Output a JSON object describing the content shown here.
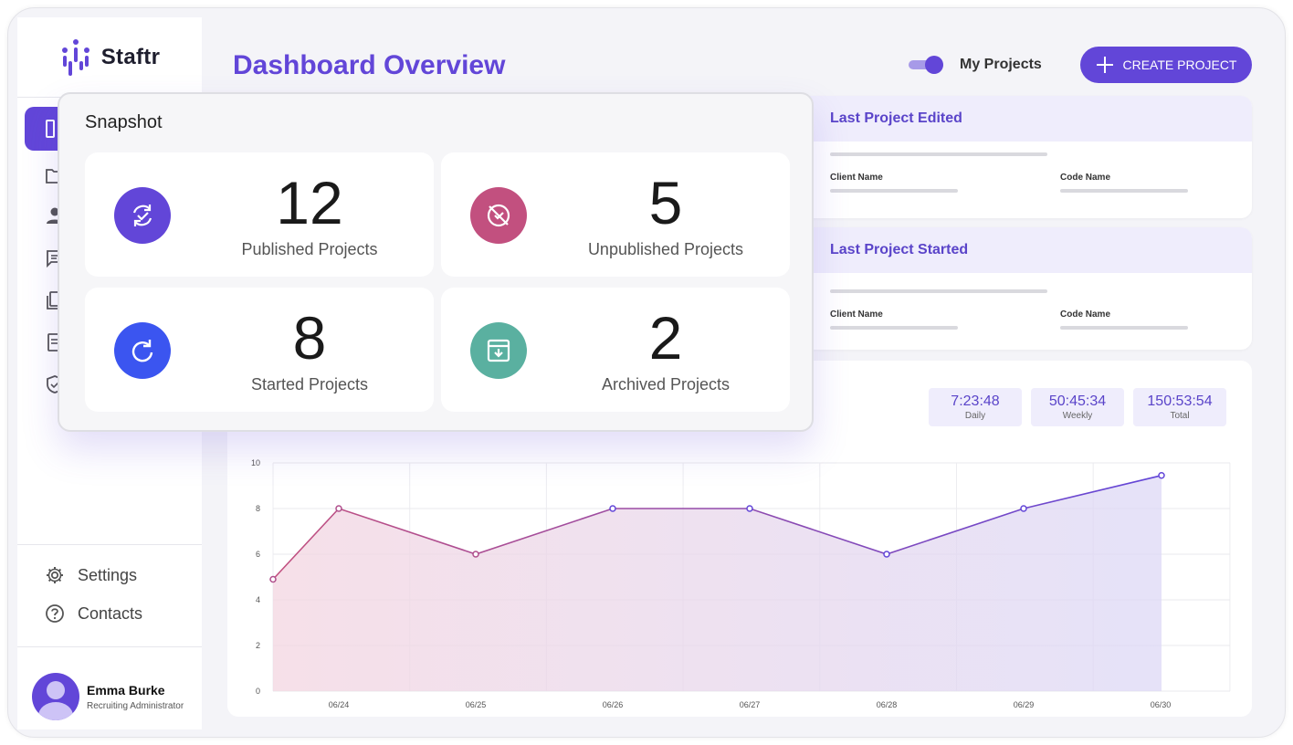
{
  "app": {
    "name": "Staftr"
  },
  "header": {
    "title": "Dashboard Overview",
    "toggle_label": "My Projects",
    "create_label": "CREATE PROJECT"
  },
  "sidebar": {
    "settings_label": "Settings",
    "contacts_label": "Contacts",
    "user": {
      "name": "Emma Burke",
      "role": "Recruiting Administrator"
    }
  },
  "cards": {
    "last_edited": {
      "title": "Last Project Edited",
      "client_label": "Client Name",
      "code_label": "Code Name"
    },
    "last_started": {
      "title": "Last Project Started",
      "client_label": "Client Name",
      "code_label": "Code Name"
    }
  },
  "timers": [
    {
      "time": "7:23:48",
      "label": "Daily"
    },
    {
      "time": "50:45:34",
      "label": "Weekly"
    },
    {
      "time": "150:53:54",
      "label": "Total"
    }
  ],
  "snapshot": {
    "title": "Snapshot",
    "stats": [
      {
        "value": "12",
        "label": "Published Projects",
        "color": "#6246d8"
      },
      {
        "value": "5",
        "label": "Unpublished Projects",
        "color": "#c2507f"
      },
      {
        "value": "8",
        "label": "Started Projects",
        "color": "#3b55f0"
      },
      {
        "value": "2",
        "label": "Archived Projects",
        "color": "#5ab0a0"
      }
    ]
  },
  "colors": {
    "accent": "#6246d8",
    "line_start": "#c2507f",
    "line_end": "#6246d8"
  },
  "chart_data": {
    "type": "area",
    "x": [
      "06/24",
      "06/25",
      "06/26",
      "06/27",
      "06/28",
      "06/29",
      "06/30"
    ],
    "points": [
      {
        "x": "06/23.5",
        "y": 4.9
      },
      {
        "x": "06/24",
        "y": 8
      },
      {
        "x": "06/25",
        "y": 6
      },
      {
        "x": "06/26",
        "y": 8
      },
      {
        "x": "06/27",
        "y": 8
      },
      {
        "x": "06/28",
        "y": 6
      },
      {
        "x": "06/29",
        "y": 8
      },
      {
        "x": "06/30",
        "y": 9.45
      }
    ],
    "y_ticks": [
      "0",
      "2",
      "4",
      "6",
      "8",
      "10"
    ],
    "ylim": [
      0,
      10
    ],
    "grid": true
  }
}
